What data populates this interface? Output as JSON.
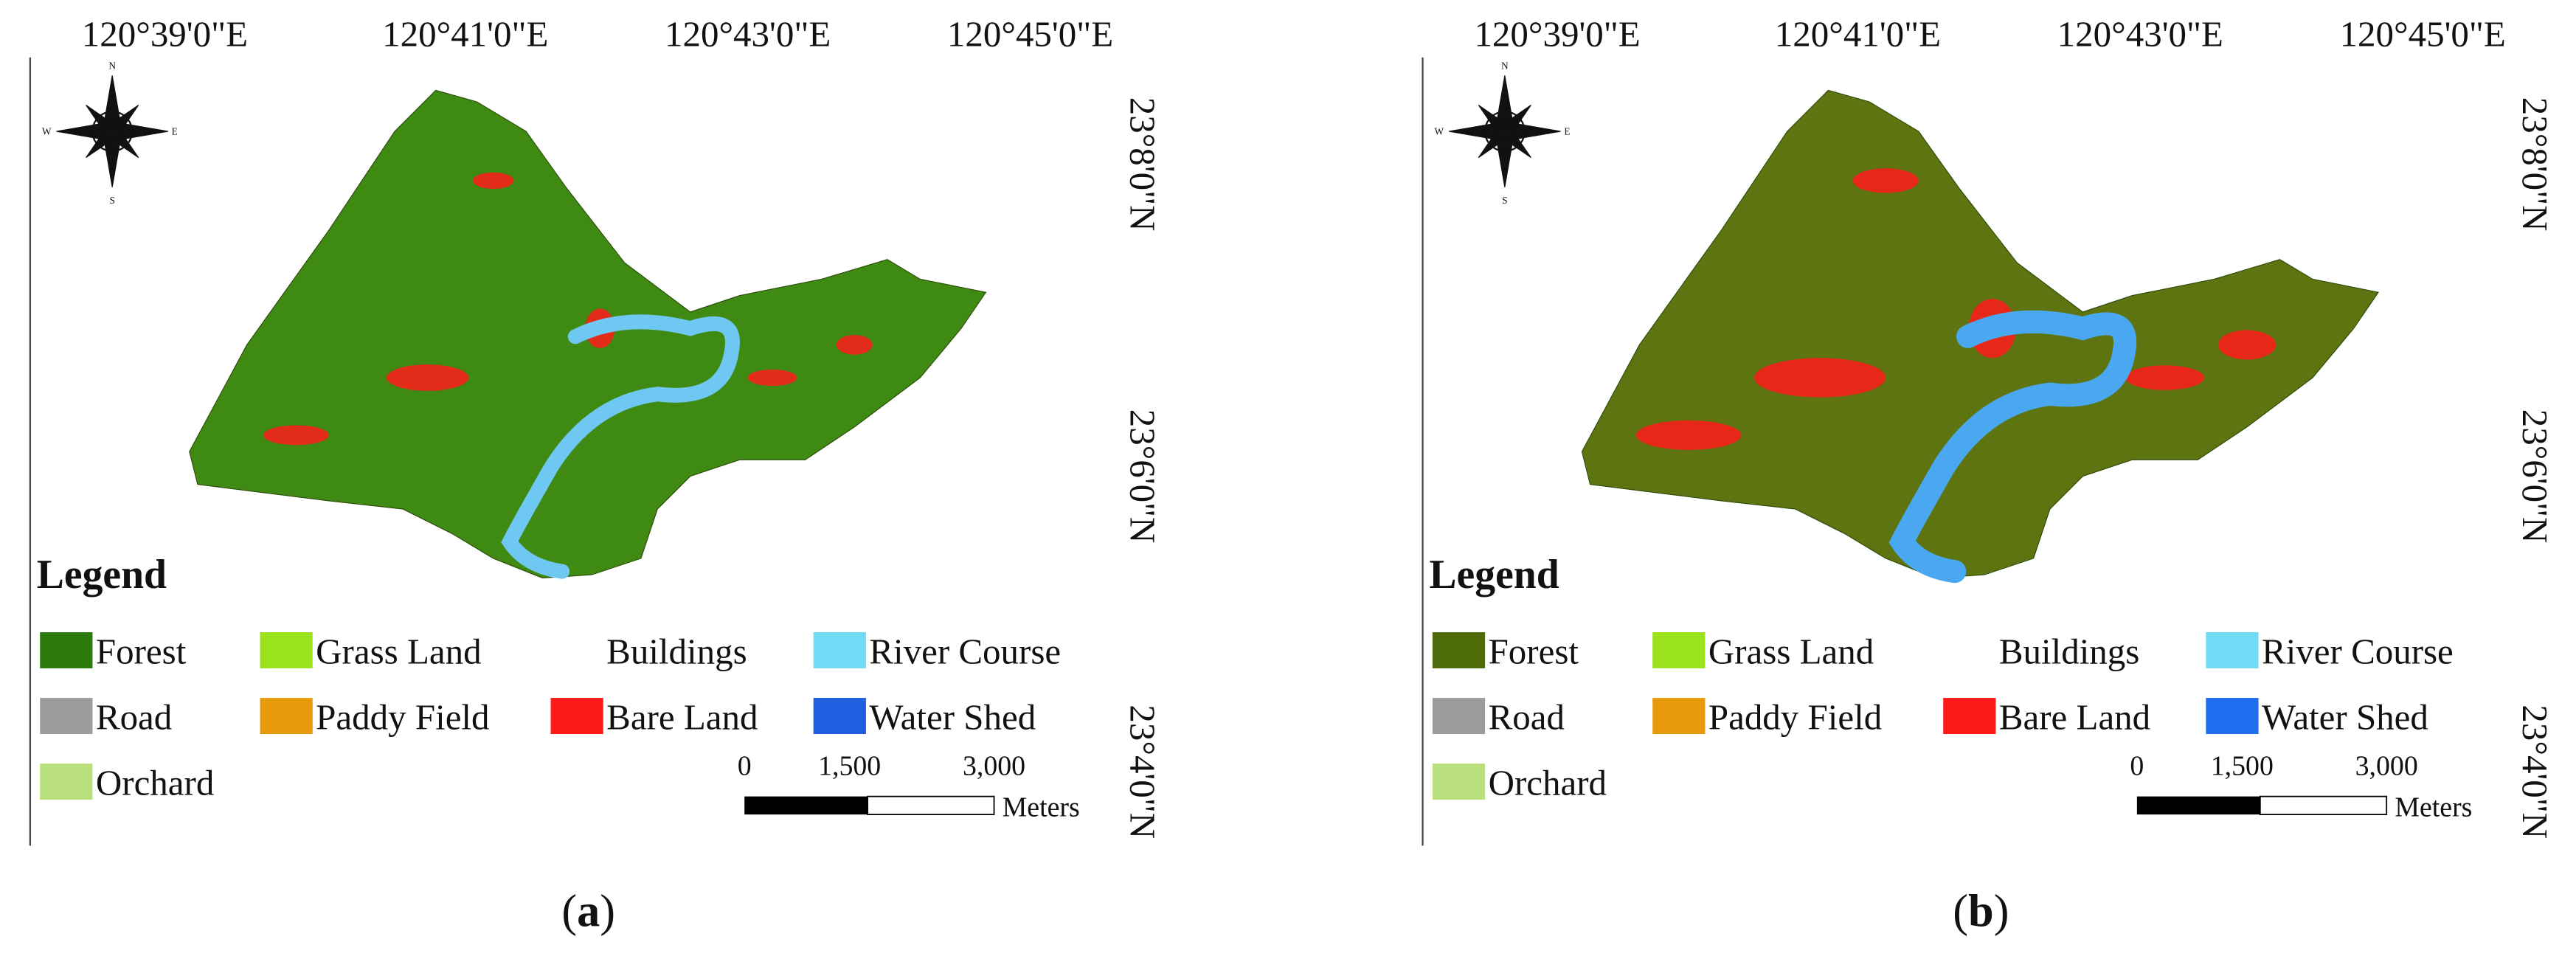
{
  "panels": [
    {
      "caption_letter": "a",
      "lon_labels": [
        "120°39'0\"E",
        "120°41'0\"E",
        "120°43'0\"E",
        "120°45'0\"E"
      ],
      "lat_labels": [
        "23°8'0\"N",
        "23°6'0\"N",
        "23°4'0\"N"
      ],
      "compass": [
        "N",
        "E",
        "S",
        "W"
      ],
      "map_color": "#3f8a12",
      "legend_title": "Legend",
      "legend": [
        {
          "label": "Forest",
          "color": "#2b7a0b"
        },
        {
          "label": "Grass Land",
          "color": "#9be21e"
        },
        {
          "label": "Buildings",
          "color": "#ffffff"
        },
        {
          "label": "River Course",
          "color": "#70dcf6"
        },
        {
          "label": "Road",
          "color": "#9c9c9c"
        },
        {
          "label": "Paddy Field",
          "color": "#e69a0c"
        },
        {
          "label": "Bare Land",
          "color": "#ff1a1a"
        },
        {
          "label": "Water Shed",
          "color": "#1f5fe0"
        },
        {
          "label": "Orchard",
          "color": "#b9e07c"
        }
      ],
      "scale_labels": [
        "0",
        "1,500",
        "3,000"
      ],
      "scale_unit": "Meters"
    },
    {
      "caption_letter": "b",
      "lon_labels": [
        "120°39'0\"E",
        "120°41'0\"E",
        "120°43'0\"E",
        "120°45'0\"E"
      ],
      "lat_labels": [
        "23°8'0\"N",
        "23°6'0\"N",
        "23°4'0\"N"
      ],
      "compass": [
        "N",
        "E",
        "S",
        "W"
      ],
      "map_color": "#5e7410",
      "legend_title": "Legend",
      "legend": [
        {
          "label": "Forest",
          "color": "#4d6b08"
        },
        {
          "label": "Grass Land",
          "color": "#9be21e"
        },
        {
          "label": "Buildings",
          "color": "#ffffff"
        },
        {
          "label": "River Course",
          "color": "#70dcf6"
        },
        {
          "label": "Road",
          "color": "#9c9c9c"
        },
        {
          "label": "Paddy Field",
          "color": "#e69a0c"
        },
        {
          "label": "Bare Land",
          "color": "#ff1a1a"
        },
        {
          "label": "Water Shed",
          "color": "#1f6ef0"
        },
        {
          "label": "Orchard",
          "color": "#b9e07c"
        }
      ],
      "scale_labels": [
        "0",
        "1,500",
        "3,000"
      ],
      "scale_unit": "Meters"
    }
  ]
}
